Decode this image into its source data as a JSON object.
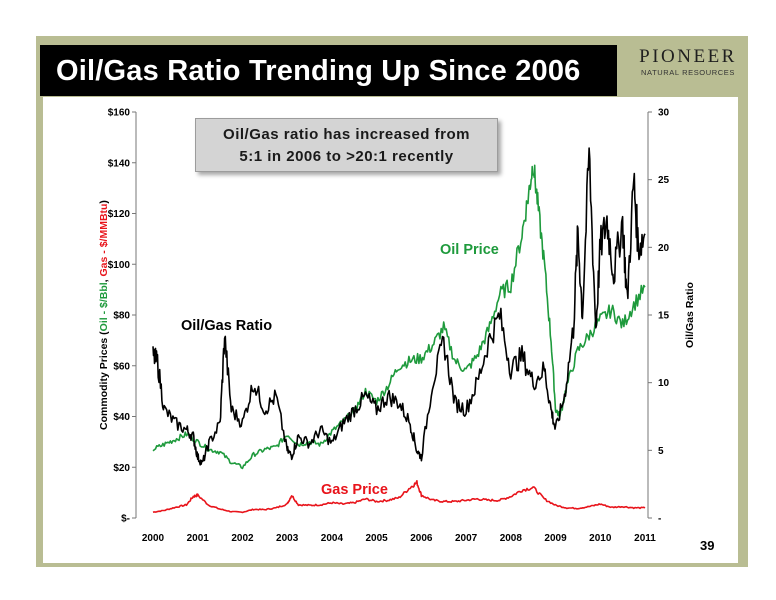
{
  "slide": {
    "title": "Oil/Gas Ratio Trending Up Since 2006",
    "page_number": "39",
    "logo": {
      "word": "PIONEER",
      "subtitle": "NATURAL RESOURCES"
    },
    "callout": {
      "line1": "Oil/Gas ratio has increased from",
      "line2": "5:1 in 2006 to >20:1 recently"
    }
  },
  "colors": {
    "oil": "#1e9a3c",
    "gas": "#e8141b",
    "ratio": "#000000",
    "frame": "#b9bd93",
    "title_bar": "#000000"
  },
  "chart_data": {
    "type": "line",
    "title": "",
    "x_tick_labels": [
      "2000",
      "2001",
      "2002",
      "2003",
      "2004",
      "2005",
      "2006",
      "2007",
      "2008",
      "2009",
      "2010",
      "2011"
    ],
    "xlim": [
      2000,
      2011
    ],
    "y_left": {
      "label_parts": [
        {
          "text": "Commodity Prices (",
          "color": "#000000"
        },
        {
          "text": "Oil - $/Bbl",
          "color": "#1e9a3c"
        },
        {
          "text": ", ",
          "color": "#000000"
        },
        {
          "text": "Gas - $/MMBtu",
          "color": "#e8141b"
        },
        {
          "text": ")",
          "color": "#000000"
        }
      ],
      "range": [
        0,
        160
      ],
      "ticks": [
        0,
        20,
        40,
        60,
        80,
        100,
        120,
        140,
        160
      ],
      "tick_labels": [
        "$-",
        "$20",
        "$40",
        "$60",
        "$80",
        "$100",
        "$120",
        "$140",
        "$160"
      ]
    },
    "y_right": {
      "label": "Oil/Gas Ratio",
      "range": [
        0,
        30
      ],
      "ticks": [
        0,
        5,
        10,
        15,
        20,
        25,
        30
      ],
      "tick_labels": [
        "-",
        "5",
        "10",
        "15",
        "20",
        "25",
        "30"
      ]
    },
    "grid": false,
    "annotations": [
      {
        "text": "Oil Price",
        "series": "oil"
      },
      {
        "text": "Oil/Gas Ratio",
        "series": "ratio"
      },
      {
        "text": "Gas Price",
        "series": "gas"
      }
    ],
    "series": [
      {
        "key": "oil",
        "axis": "left",
        "color": "#1e9a3c",
        "x": [
          2000.0,
          2000.25,
          2000.5,
          2000.75,
          2001.0,
          2001.25,
          2001.5,
          2001.75,
          2002.0,
          2002.25,
          2002.5,
          2002.75,
          2003.0,
          2003.25,
          2003.5,
          2003.75,
          2004.0,
          2004.25,
          2004.5,
          2004.75,
          2005.0,
          2005.25,
          2005.5,
          2005.75,
          2006.0,
          2006.25,
          2006.5,
          2006.75,
          2007.0,
          2007.25,
          2007.5,
          2007.75,
          2008.0,
          2008.25,
          2008.4,
          2008.5,
          2008.6,
          2008.75,
          2008.9,
          2009.0,
          2009.1,
          2009.25,
          2009.5,
          2009.75,
          2010.0,
          2010.25,
          2010.5,
          2010.75,
          2011.0
        ],
        "y": [
          27,
          29,
          31,
          33,
          30,
          27,
          26,
          22,
          20,
          25,
          27,
          28,
          33,
          29,
          30,
          29,
          34,
          38,
          42,
          50,
          46,
          52,
          60,
          62,
          63,
          68,
          75,
          62,
          58,
          64,
          74,
          88,
          92,
          112,
          128,
          140,
          124,
          100,
          70,
          43,
          40,
          52,
          66,
          72,
          78,
          82,
          76,
          84,
          91
        ]
      },
      {
        "key": "ratio",
        "axis": "right",
        "color": "#000000",
        "x": [
          2000.0,
          2000.1,
          2000.25,
          2000.5,
          2000.75,
          2000.9,
          2001.0,
          2001.1,
          2001.25,
          2001.5,
          2001.6,
          2001.75,
          2002.0,
          2002.25,
          2002.5,
          2002.75,
          2003.0,
          2003.1,
          2003.25,
          2003.5,
          2003.75,
          2004.0,
          2004.25,
          2004.5,
          2004.75,
          2005.0,
          2005.25,
          2005.5,
          2005.75,
          2005.9,
          2006.0,
          2006.25,
          2006.5,
          2006.75,
          2007.0,
          2007.25,
          2007.5,
          2007.75,
          2008.0,
          2008.25,
          2008.5,
          2008.75,
          2008.9,
          2009.0,
          2009.2,
          2009.4,
          2009.5,
          2009.6,
          2009.75,
          2009.9,
          2010.0,
          2010.15,
          2010.3,
          2010.5,
          2010.6,
          2010.75,
          2010.85,
          2011.0
        ],
        "y": [
          12,
          11.5,
          8,
          7,
          6.5,
          6,
          4.5,
          4.0,
          5.5,
          7,
          13.5,
          8,
          7,
          10,
          8,
          9,
          5,
          4.6,
          6,
          5.5,
          6.5,
          5.5,
          7,
          8,
          9,
          8,
          9,
          8.5,
          7,
          5,
          4.5,
          10,
          13,
          8.5,
          8,
          10,
          13,
          15,
          11,
          12,
          10,
          11,
          8,
          6.5,
          9,
          14,
          21,
          15,
          27,
          14,
          20,
          22,
          18,
          22,
          16,
          25,
          20,
          21
        ]
      },
      {
        "key": "gas",
        "axis": "left",
        "color": "#e8141b",
        "x": [
          2000.0,
          2000.25,
          2000.5,
          2000.75,
          2000.9,
          2001.0,
          2001.25,
          2001.5,
          2001.75,
          2002.0,
          2002.25,
          2002.5,
          2002.75,
          2003.0,
          2003.1,
          2003.25,
          2003.5,
          2003.75,
          2004.0,
          2004.25,
          2004.5,
          2004.75,
          2005.0,
          2005.25,
          2005.5,
          2005.75,
          2005.9,
          2006.0,
          2006.25,
          2006.5,
          2006.75,
          2007.0,
          2007.25,
          2007.5,
          2007.75,
          2008.0,
          2008.25,
          2008.5,
          2008.75,
          2009.0,
          2009.25,
          2009.5,
          2009.75,
          2010.0,
          2010.25,
          2010.5,
          2010.75,
          2011.0
        ],
        "y": [
          2.3,
          3.0,
          4.2,
          5.2,
          8.5,
          9.0,
          5.0,
          3.5,
          2.5,
          2.3,
          3.4,
          3.3,
          4.0,
          5.5,
          9.0,
          5.2,
          5.0,
          5.2,
          6.0,
          5.5,
          6.0,
          7.5,
          6.5,
          7.0,
          8.0,
          12.0,
          14.0,
          9.0,
          7.0,
          6.5,
          6.5,
          7.0,
          7.5,
          7.0,
          7.0,
          8.5,
          11.0,
          12.0,
          7.5,
          5.0,
          4.0,
          3.8,
          4.5,
          5.5,
          4.2,
          4.5,
          4.0,
          4.0
        ]
      }
    ]
  }
}
